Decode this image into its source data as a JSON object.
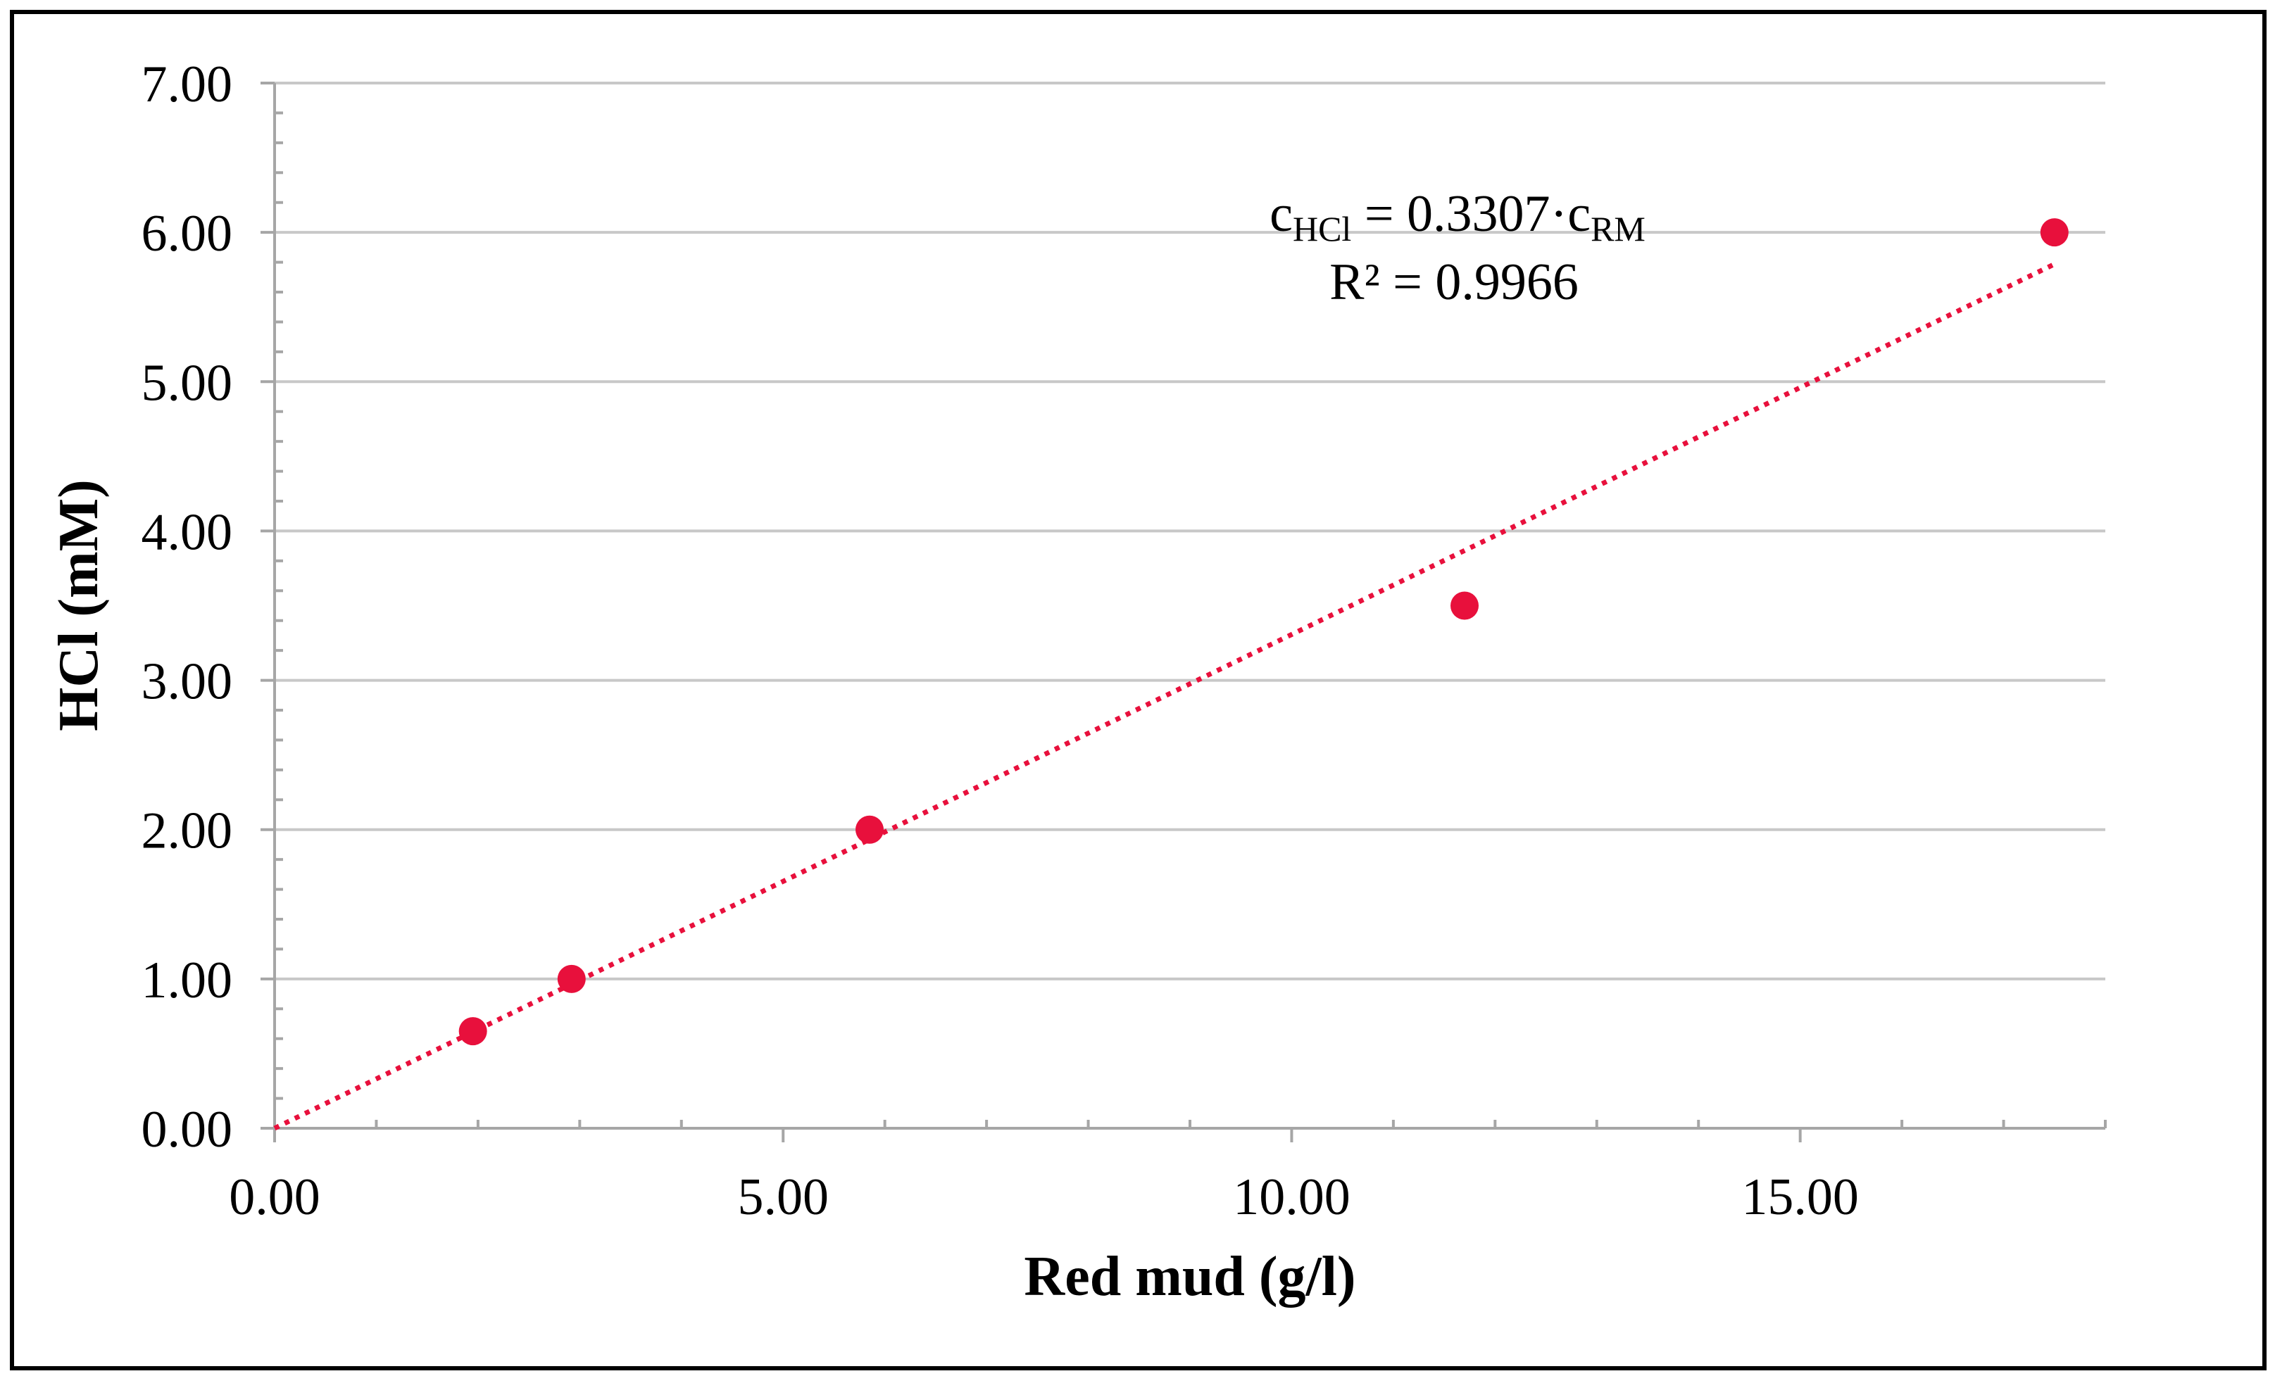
{
  "chart_data": {
    "type": "scatter",
    "xlabel": "Red mud (g/l)",
    "ylabel": "HCl (mM)",
    "xlim": [
      0,
      18
    ],
    "ylim": [
      0,
      7
    ],
    "x_ticks": [
      "0.00",
      "5.00",
      "10.00",
      "15.00"
    ],
    "y_ticks": [
      "0.00",
      "1.00",
      "2.00",
      "3.00",
      "4.00",
      "5.00",
      "6.00",
      "7.00"
    ],
    "x_tick_values": [
      0,
      5,
      10,
      15
    ],
    "y_tick_values": [
      0,
      1,
      2,
      3,
      4,
      5,
      6,
      7
    ],
    "grid": true,
    "series": [
      {
        "name": "HCl",
        "x": [
          1.95,
          2.92,
          5.85,
          11.7,
          17.5
        ],
        "y": [
          0.65,
          1.0,
          2.0,
          3.5,
          6.0
        ],
        "color": "#e8103c"
      }
    ],
    "trendline": {
      "slope": 0.3307,
      "x_range": [
        0,
        17.5
      ],
      "color": "#e8103c",
      "style": "dotted"
    },
    "annotation": {
      "eq_c": "c",
      "eq_sub1": "HCl",
      "eq_mid": " = 0.3307·c",
      "eq_sub2": "RM",
      "r2": "R² = 0.9966"
    }
  }
}
